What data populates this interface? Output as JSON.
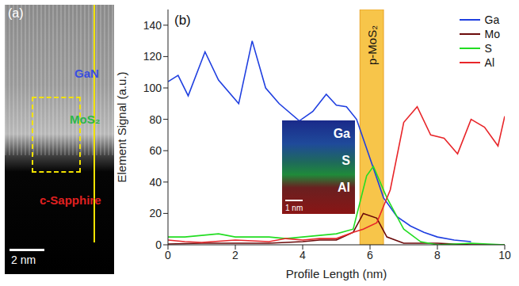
{
  "panel_a": {
    "label": "(a)",
    "layers": [
      "GaN",
      "MoS₂",
      "c-Sapphire"
    ],
    "colors": [
      "#3a4fe0",
      "#2db84a",
      "#e02020"
    ],
    "scale_bar": "2 nm"
  },
  "chart_data": {
    "type": "line",
    "panel_label": "(b)",
    "x_label": "Profile Length (nm)",
    "y_label": "Element Signal (a.u.)",
    "xlim": [
      0,
      10
    ],
    "xticks": [
      0,
      2,
      4,
      6,
      8,
      10
    ],
    "ylim": [
      0,
      150
    ],
    "yticks": [
      0,
      20,
      40,
      60,
      80,
      100,
      120,
      140
    ],
    "legend": "top right",
    "shaded_region": {
      "label": "p-MoS₂",
      "x": [
        5.7,
        6.4
      ]
    },
    "inset": {
      "labels": [
        "Ga",
        "S",
        "Al"
      ],
      "scale_bar": "1 nm"
    },
    "series": [
      {
        "name": "Ga",
        "color": "#1f3fe0",
        "x": [
          0,
          0.3,
          0.6,
          1.1,
          1.5,
          2.1,
          2.5,
          2.9,
          3.3,
          3.9,
          4.3,
          4.7,
          5.0,
          5.3,
          5.6,
          6.0,
          6.4,
          6.8,
          7.2,
          7.6,
          8.0,
          8.5,
          9.0
        ],
        "values": [
          104,
          108,
          95,
          123,
          105,
          90,
          130,
          100,
          90,
          79,
          85,
          96,
          89,
          88,
          80,
          55,
          30,
          18,
          12,
          8,
          5,
          3,
          2
        ]
      },
      {
        "name": "Mo",
        "color": "#6b0a0a",
        "x": [
          0,
          1,
          2,
          3,
          4,
          4.5,
          5,
          5.5,
          5.8,
          6.2,
          6.5,
          7,
          8,
          9,
          10
        ],
        "values": [
          0.5,
          1,
          1,
          1,
          2,
          3,
          3,
          8,
          20,
          17,
          5,
          1,
          1,
          0,
          0
        ]
      },
      {
        "name": "S",
        "color": "#22dd22",
        "x": [
          0,
          0.5,
          1,
          1.5,
          2,
          3,
          3.5,
          4.5,
          5,
          5.5,
          5.9,
          6.1,
          6.5,
          7,
          7.5,
          8,
          9,
          10
        ],
        "values": [
          5,
          5,
          6,
          7,
          5,
          5,
          4,
          6,
          7,
          10,
          44,
          50,
          30,
          10,
          2,
          0,
          1,
          0
        ]
      },
      {
        "name": "Al",
        "color": "#e8262a",
        "x": [
          0,
          0.5,
          1,
          2,
          3,
          3.5,
          4,
          4.5,
          5,
          5.5,
          5.8,
          6.2,
          6.6,
          7,
          7.4,
          7.8,
          8.2,
          8.6,
          9,
          9.4,
          9.8,
          10
        ],
        "values": [
          3,
          2,
          1.5,
          3,
          2,
          4,
          3,
          4,
          4,
          8,
          10,
          14,
          35,
          78,
          88,
          70,
          68,
          58,
          80,
          75,
          63,
          82
        ]
      }
    ]
  }
}
